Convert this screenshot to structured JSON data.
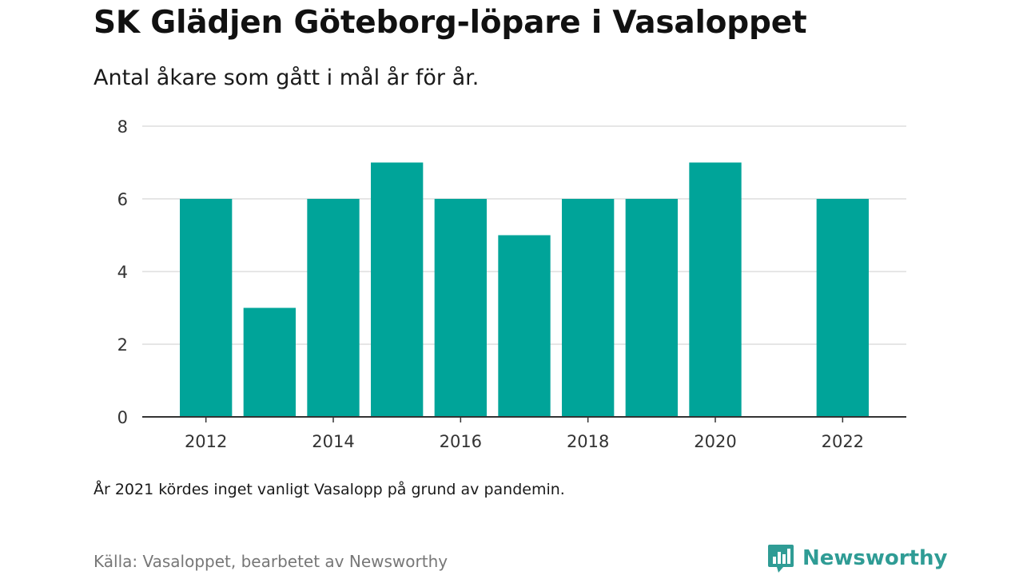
{
  "header": {
    "title": "SK Glädjen Göteborg-löpare i Vasaloppet",
    "subtitle": "Antal åkare som gått i mål år för år."
  },
  "footer": {
    "note": "År 2021 kördes inget vanligt Vasalopp på grund av pandemin.",
    "source": "Källa: Vasaloppet, bearbetet av Newsworthy",
    "brand": "Newsworthy"
  },
  "colors": {
    "bar": "#00a499",
    "brand": "#2f9c95",
    "grid": "#dddddd",
    "axis": "#333333"
  },
  "icons": {
    "brand_logo": "chart-bubble-icon"
  },
  "chart_data": {
    "type": "bar",
    "title": "SK Glädjen Göteborg-löpare i Vasaloppet",
    "subtitle": "Antal åkare som gått i mål år för år.",
    "xlabel": "",
    "ylabel": "",
    "ylim": [
      0,
      8
    ],
    "yticks": [
      0,
      2,
      4,
      6,
      8
    ],
    "xticks": [
      2012,
      2014,
      2016,
      2018,
      2020,
      2022
    ],
    "xlim": [
      2011,
      2023
    ],
    "grid": true,
    "legend": "none",
    "x": [
      2012,
      2013,
      2014,
      2015,
      2016,
      2017,
      2018,
      2019,
      2020,
      2022
    ],
    "values": [
      6,
      3,
      6,
      7,
      6,
      5,
      6,
      6,
      7,
      6
    ]
  }
}
